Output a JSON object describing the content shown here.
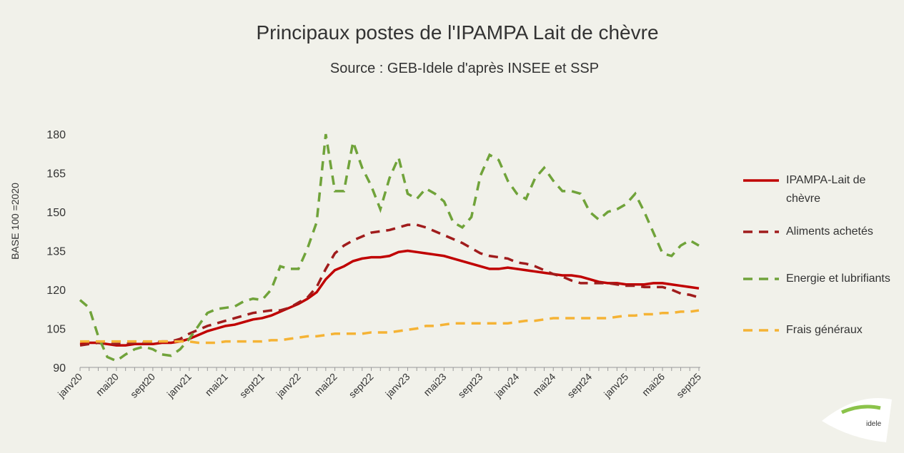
{
  "chart_data": {
    "type": "line",
    "title": "Principaux postes de l'IPAMPA Lait de chèvre",
    "subtitle": "Source : GEB-Idele d'après INSEE et SSP",
    "y_label": "BASE 100 =2020",
    "categories": [
      "janv20",
      null,
      null,
      null,
      "mai20",
      null,
      null,
      null,
      "sept20",
      null,
      null,
      null,
      "janv21",
      null,
      null,
      null,
      "mai21",
      null,
      null,
      null,
      "sept21",
      null,
      null,
      null,
      "janv22",
      null,
      null,
      null,
      "mai22",
      null,
      null,
      null,
      "sept22",
      null,
      null,
      null,
      "janv23",
      null,
      null,
      null,
      "mai23",
      null,
      null,
      null,
      "sept23",
      null,
      null,
      null,
      "janv24",
      null,
      null,
      null,
      "mai24",
      null,
      null,
      null,
      "sept24",
      null,
      null,
      null,
      "janv25",
      null,
      null,
      null,
      "mai26",
      null,
      null,
      null,
      "sept25"
    ],
    "ylim": [
      90,
      180
    ],
    "yticks": [
      90,
      105,
      120,
      135,
      150,
      165,
      180
    ],
    "series": [
      {
        "name": "IPAMPA-Lait de chèvre",
        "color": "#c00000",
        "dashed": false,
        "values": [
          99,
          99.5,
          99.5,
          99,
          98.5,
          98.5,
          99,
          99,
          99,
          99.5,
          99.5,
          100,
          101,
          102.5,
          104,
          105,
          106,
          106.5,
          107.5,
          108.5,
          109,
          110,
          111.5,
          113,
          114.5,
          116.5,
          119,
          124,
          127.5,
          129,
          131,
          132,
          132.5,
          132.5,
          133,
          134.5,
          135,
          134.5,
          134,
          133.5,
          133,
          132,
          131,
          130,
          129,
          128,
          128,
          128.5,
          128,
          127.5,
          127,
          126.5,
          126,
          125.5,
          125.5,
          125,
          124,
          123,
          122.5,
          122.5,
          122,
          122,
          122,
          122.5,
          122.5,
          122,
          121.5,
          121,
          120.5
        ]
      },
      {
        "name": "Aliments achetés",
        "color": "#a01c1c",
        "dashed": true,
        "values": [
          98.5,
          99,
          99.5,
          99,
          99,
          99,
          99.5,
          99.5,
          99.5,
          100,
          100,
          101,
          103,
          104.5,
          106,
          107,
          108,
          109,
          110,
          111,
          111.5,
          112,
          112,
          113,
          115,
          117,
          121,
          128,
          134,
          137,
          139,
          140.5,
          142,
          142.5,
          143,
          144,
          145,
          145,
          144,
          142.5,
          141,
          139.5,
          138,
          136,
          134,
          133,
          132.5,
          132,
          130.5,
          130,
          129,
          127.5,
          126,
          125,
          123.5,
          122.5,
          122.5,
          122.5,
          122.5,
          122,
          121.5,
          121.5,
          121,
          121,
          121,
          120,
          118.5,
          118,
          117
        ]
      },
      {
        "name": "Energie et lubrifiants",
        "color": "#70a33a",
        "dashed": true,
        "values": [
          116,
          113,
          102,
          94,
          92.5,
          95,
          97,
          98,
          97,
          95,
          94.5,
          97,
          101,
          106,
          111,
          112.5,
          113,
          113.5,
          115.5,
          116.5,
          116,
          120,
          129,
          128,
          128,
          136,
          146,
          180,
          158,
          158,
          177,
          167,
          160,
          151,
          163,
          171,
          157,
          155,
          159,
          157,
          154,
          146,
          144,
          148,
          164,
          172,
          170,
          162,
          157,
          155,
          163,
          167,
          162,
          158,
          158,
          157,
          150,
          147,
          150,
          151,
          153,
          157,
          150,
          142,
          134,
          133,
          137,
          139,
          137
        ]
      },
      {
        "name": "Frais généraux",
        "color": "#f5b335",
        "dashed": true,
        "values": [
          100,
          100,
          100,
          100,
          100,
          100,
          100,
          100,
          100,
          100,
          100,
          100,
          100,
          99.5,
          99.5,
          99.5,
          100,
          100,
          100,
          100,
          100,
          100.5,
          100.5,
          101,
          101.5,
          102,
          102,
          102.5,
          103,
          103,
          103,
          103,
          103.5,
          103.5,
          103.5,
          104,
          104.5,
          105,
          106,
          106,
          106.5,
          107,
          107,
          107,
          107,
          107,
          107,
          107,
          107.5,
          108,
          108,
          108.5,
          109,
          109,
          109,
          109,
          109,
          109,
          109,
          109.5,
          110,
          110,
          110.5,
          110.5,
          111,
          111,
          111.5,
          111.5,
          112
        ]
      }
    ]
  }
}
